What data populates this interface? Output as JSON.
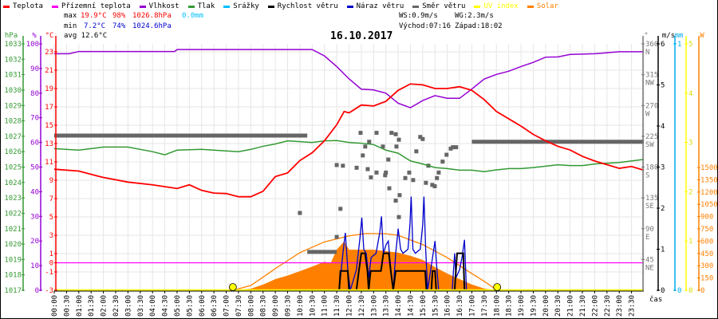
{
  "legend": [
    {
      "label": "Teplota",
      "color": "#ff0000"
    },
    {
      "label": "Přízemní teplota",
      "color": "#ff00ff"
    },
    {
      "label": "Vlhkost",
      "color": "#9400d3"
    },
    {
      "label": "Tlak",
      "color": "#339933"
    },
    {
      "label": "Srážky",
      "color": "#00bfff"
    },
    {
      "label": "Rychlost větru",
      "color": "#000000"
    },
    {
      "label": "Náraz větru",
      "color": "#0000cc"
    },
    {
      "label": "Směr větru",
      "color": "#666666"
    },
    {
      "label": "UV index",
      "color": "#ffff00"
    },
    {
      "label": "Solar",
      "color": "#ff8000"
    }
  ],
  "header": {
    "max_label": "max",
    "max_temp": "19.9°C",
    "max_hum": "98%",
    "max_press": "1026.8hPa",
    "rain": "0.0mm",
    "min_label": "min",
    "min_temp": "7.2°C",
    "min_hum": "74%",
    "min_press": "1024.6hPa",
    "avg": "avg 12.6°C",
    "ws": "WS:0.9m/s",
    "wg": "WG:2.3m/s",
    "sunrise": "Východ:07:16",
    "sunset": "Západ:18:02"
  },
  "chart_data": {
    "type": "line",
    "title": "16.10.2017",
    "xlabel": "čas",
    "x_range_hours": [
      0,
      24
    ],
    "x_ticks": [
      "00:00",
      "00:30",
      "01:00",
      "01:30",
      "02:00",
      "02:30",
      "03:00",
      "03:30",
      "04:00",
      "04:30",
      "05:00",
      "05:30",
      "06:00",
      "06:30",
      "07:00",
      "07:30",
      "08:00",
      "08:30",
      "09:00",
      "09:30",
      "10:00",
      "10:30",
      "11:00",
      "11:30",
      "12:00",
      "12:30",
      "13:00",
      "13:30",
      "14:00",
      "14:30",
      "15:00",
      "15:30",
      "16:00",
      "16:30",
      "17:00",
      "17:30",
      "18:00",
      "18:30",
      "19:00",
      "19:30",
      "20:00",
      "20:30",
      "21:00",
      "21:30",
      "22:00",
      "22:30",
      "23:00",
      "23:30"
    ],
    "grid": true,
    "axes": {
      "pressure": {
        "label": "hPa",
        "range": [
          1017,
          1033
        ],
        "ticks": [
          1017,
          1018,
          1019,
          1020,
          1021,
          1022,
          1023,
          1024,
          1025,
          1026,
          1027,
          1028,
          1029,
          1030,
          1031,
          1032,
          1033
        ],
        "color": "#339933"
      },
      "humidity": {
        "label": "%",
        "range": [
          0,
          100
        ],
        "ticks": [
          0,
          10,
          20,
          30,
          40,
          50,
          60,
          70,
          80,
          90,
          100
        ],
        "color": "#9400d3"
      },
      "temperature": {
        "label": "°C",
        "range": [
          -3,
          23.87
        ],
        "ticks": [
          -3,
          -1,
          0,
          1,
          3,
          5,
          7,
          9,
          11,
          13,
          15,
          17,
          19,
          21,
          23
        ],
        "color": "#ff0000"
      },
      "wind_dir": {
        "label": "°",
        "range": [
          0,
          360
        ],
        "ticks": [
          {
            "v": 45,
            "l": "45",
            "d": "NE"
          },
          {
            "v": 90,
            "l": "90",
            "d": "E"
          },
          {
            "v": 135,
            "l": "135",
            "d": "SE"
          },
          {
            "v": 180,
            "l": "180",
            "d": "S"
          },
          {
            "v": 225,
            "l": "225",
            "d": "SW"
          },
          {
            "v": 270,
            "l": "270",
            "d": "W"
          },
          {
            "v": 315,
            "l": "315",
            "d": "NW"
          },
          {
            "v": 360,
            "l": "360",
            "d": "N"
          }
        ],
        "color": "#777777"
      },
      "wind_speed": {
        "label": "m/s",
        "range": [
          0,
          6
        ],
        "ticks": [
          0,
          1,
          2,
          3,
          4,
          5,
          6
        ],
        "color": "#000000"
      },
      "rain": {
        "label": "mm",
        "range": [
          0,
          1
        ],
        "ticks": [
          0,
          1
        ],
        "color": "#00aaee"
      },
      "uv": {
        "label": "",
        "range": [
          0,
          5
        ],
        "ticks": [
          0,
          1,
          2,
          3,
          4,
          5
        ],
        "color": "#ffff00"
      },
      "solar": {
        "label": "W",
        "range": [
          0,
          3000
        ],
        "ticks": [
          0,
          150,
          300,
          450,
          600,
          750,
          900,
          1050,
          1200,
          1350,
          1500
        ],
        "color": "#ff8000"
      }
    },
    "series": {
      "temperature": [
        [
          0,
          10.2
        ],
        [
          1,
          10.0
        ],
        [
          2,
          9.3
        ],
        [
          3,
          8.8
        ],
        [
          4,
          8.5
        ],
        [
          5,
          8.1
        ],
        [
          5.5,
          8.5
        ],
        [
          6,
          7.9
        ],
        [
          6.5,
          7.6
        ],
        [
          7,
          7.55
        ],
        [
          7.5,
          7.2
        ],
        [
          8,
          7.2
        ],
        [
          8.5,
          7.8
        ],
        [
          9,
          9.4
        ],
        [
          9.5,
          9.8
        ],
        [
          10,
          11.15
        ],
        [
          10.5,
          12.0
        ],
        [
          11,
          13.3
        ],
        [
          11.5,
          15.05
        ],
        [
          11.8,
          16.5
        ],
        [
          12,
          16.35
        ],
        [
          12.5,
          17.2
        ],
        [
          13,
          17.1
        ],
        [
          13.5,
          17.6
        ],
        [
          14,
          18.8
        ],
        [
          14.5,
          19.5
        ],
        [
          15,
          19.4
        ],
        [
          15.5,
          19.0
        ],
        [
          16,
          19.0
        ],
        [
          16.5,
          19.2
        ],
        [
          17,
          18.8
        ],
        [
          17.5,
          17.8
        ],
        [
          18,
          16.5
        ],
        [
          18.5,
          15.7
        ],
        [
          19,
          14.9
        ],
        [
          19.5,
          14.0
        ],
        [
          20,
          13.3
        ],
        [
          20.5,
          12.7
        ],
        [
          21,
          12.3
        ],
        [
          21.5,
          11.6
        ],
        [
          22,
          11.1
        ],
        [
          22.5,
          10.7
        ],
        [
          23,
          10.3
        ],
        [
          23.5,
          10.5
        ],
        [
          24,
          10.1
        ]
      ],
      "apparent_temperature": [
        [
          0,
          0
        ],
        [
          24,
          0
        ]
      ],
      "humidity": [
        [
          0,
          96.0
        ],
        [
          0.6,
          96.0
        ],
        [
          1,
          96.9
        ],
        [
          4.9,
          96.9
        ],
        [
          5,
          97.7
        ],
        [
          10.5,
          97.7
        ],
        [
          11,
          95.1
        ],
        [
          11.5,
          90.8
        ],
        [
          12,
          85.8
        ],
        [
          12.5,
          81.6
        ],
        [
          13,
          81.3
        ],
        [
          13.5,
          80
        ],
        [
          14,
          75.9
        ],
        [
          14.5,
          74.1
        ],
        [
          15,
          77
        ],
        [
          15.5,
          79
        ],
        [
          16,
          77.9
        ],
        [
          16.5,
          77.9
        ],
        [
          17,
          81.7
        ],
        [
          17.5,
          85.7
        ],
        [
          18,
          87.6
        ],
        [
          18.5,
          88.9
        ],
        [
          19,
          90.8
        ],
        [
          19.5,
          92.5
        ],
        [
          20,
          94.6
        ],
        [
          20.5,
          94.7
        ],
        [
          21,
          95.7
        ],
        [
          22,
          96.0
        ],
        [
          23,
          96.8
        ],
        [
          24,
          96.8
        ]
      ],
      "pressure": [
        [
          0,
          1026.2
        ],
        [
          1,
          1026.1
        ],
        [
          2,
          1026.3
        ],
        [
          3,
          1026.3
        ],
        [
          4,
          1026.0
        ],
        [
          4.5,
          1025.8
        ],
        [
          5,
          1026.1
        ],
        [
          6,
          1026.15
        ],
        [
          7,
          1026.05
        ],
        [
          7.5,
          1026.0
        ],
        [
          8,
          1026.15
        ],
        [
          8.5,
          1026.35
        ],
        [
          9,
          1026.5
        ],
        [
          9.5,
          1026.7
        ],
        [
          10,
          1026.65
        ],
        [
          10.5,
          1026.6
        ],
        [
          11,
          1026.7
        ],
        [
          11.5,
          1026.72
        ],
        [
          12,
          1026.6
        ],
        [
          12.5,
          1026.55
        ],
        [
          13,
          1026.46
        ],
        [
          13.5,
          1026.1
        ],
        [
          14,
          1025.9
        ],
        [
          14.5,
          1025.4
        ],
        [
          15,
          1025.2
        ],
        [
          15.5,
          1024.97
        ],
        [
          16,
          1024.9
        ],
        [
          16.5,
          1024.8
        ],
        [
          17,
          1024.8
        ],
        [
          17.5,
          1024.7
        ],
        [
          18,
          1024.82
        ],
        [
          18.5,
          1024.9
        ],
        [
          19,
          1024.9
        ],
        [
          19.5,
          1024.97
        ],
        [
          20,
          1025.06
        ],
        [
          20.5,
          1025.15
        ],
        [
          21,
          1025.1
        ],
        [
          21.5,
          1025.1
        ],
        [
          22,
          1025.2
        ],
        [
          23,
          1025.3
        ],
        [
          24,
          1025.5
        ]
      ],
      "rain": [
        [
          0,
          0
        ],
        [
          24,
          0
        ]
      ],
      "uv": [
        [
          0,
          0
        ],
        [
          24,
          0
        ]
      ],
      "wind_speed": [
        [
          0,
          0
        ],
        [
          11.6,
          0
        ],
        [
          11.65,
          0.47
        ],
        [
          11.95,
          0.47
        ],
        [
          12.0,
          0
        ],
        [
          12.3,
          0
        ],
        [
          12.4,
          0.47
        ],
        [
          12.5,
          0.9
        ],
        [
          12.65,
          0.9
        ],
        [
          12.75,
          0.47
        ],
        [
          12.8,
          0
        ],
        [
          12.88,
          0.47
        ],
        [
          13.3,
          0.47
        ],
        [
          13.4,
          0.9
        ],
        [
          13.62,
          0.9
        ],
        [
          13.7,
          0.47
        ],
        [
          13.8,
          0
        ],
        [
          13.9,
          0.47
        ],
        [
          15.1,
          0.47
        ],
        [
          15.15,
          0
        ],
        [
          15.35,
          0
        ],
        [
          15.4,
          0.47
        ],
        [
          15.5,
          0.47
        ],
        [
          15.55,
          0
        ],
        [
          16.3,
          0
        ],
        [
          16.35,
          0.47
        ],
        [
          16.4,
          0.9
        ],
        [
          16.65,
          0.9
        ],
        [
          16.7,
          0
        ],
        [
          24,
          0
        ]
      ],
      "wind_gust": [
        [
          0,
          0
        ],
        [
          11.6,
          0
        ],
        [
          11.75,
          0.9
        ],
        [
          11.85,
          1.4
        ],
        [
          11.95,
          0.5
        ],
        [
          12.05,
          0
        ],
        [
          12.3,
          0.5
        ],
        [
          12.45,
          1.3
        ],
        [
          12.52,
          1.77
        ],
        [
          12.6,
          1.0
        ],
        [
          12.7,
          0.9
        ],
        [
          12.8,
          0.3
        ],
        [
          12.9,
          0.8
        ],
        [
          13.1,
          0.9
        ],
        [
          13.25,
          1.4
        ],
        [
          13.32,
          1.8
        ],
        [
          13.4,
          0.9
        ],
        [
          13.5,
          1.1
        ],
        [
          13.6,
          1.2
        ],
        [
          13.7,
          0.5
        ],
        [
          13.8,
          0
        ],
        [
          13.9,
          0.9
        ],
        [
          14.0,
          1.5
        ],
        [
          14.1,
          1.0
        ],
        [
          14.2,
          0.9
        ],
        [
          14.4,
          1.0
        ],
        [
          14.48,
          1.6
        ],
        [
          14.53,
          2.28
        ],
        [
          14.6,
          1.0
        ],
        [
          14.7,
          0.9
        ],
        [
          14.9,
          1.0
        ],
        [
          15.0,
          1.6
        ],
        [
          15.05,
          2.28
        ],
        [
          15.12,
          1.0
        ],
        [
          15.2,
          0
        ],
        [
          15.4,
          0.8
        ],
        [
          15.5,
          1.2
        ],
        [
          15.58,
          0.5
        ],
        [
          15.65,
          0
        ],
        [
          16.2,
          0
        ],
        [
          16.3,
          0.9
        ],
        [
          16.35,
          0.3
        ],
        [
          16.5,
          0.5
        ],
        [
          16.6,
          0.8
        ],
        [
          16.7,
          1.23
        ],
        [
          16.78,
          0
        ],
        [
          24,
          0
        ]
      ],
      "wind_dir_segments": [
        [
          0,
          10.3,
          226
        ],
        [
          10.3,
          11.5,
          56
        ],
        [
          17.0,
          24,
          217
        ]
      ],
      "wind_dir_points": [
        [
          10.0,
          113
        ],
        [
          11.5,
          183
        ],
        [
          11.65,
          119
        ],
        [
          11.5,
          78
        ],
        [
          11.75,
          182
        ],
        [
          12.31,
          179
        ],
        [
          12.47,
          230
        ],
        [
          12.56,
          197
        ],
        [
          12.66,
          210
        ],
        [
          12.76,
          177
        ],
        [
          12.82,
          217
        ],
        [
          12.89,
          165
        ],
        [
          13.12,
          230
        ],
        [
          13.12,
          172
        ],
        [
          13.38,
          210
        ],
        [
          13.47,
          168
        ],
        [
          13.5,
          172
        ],
        [
          13.6,
          191
        ],
        [
          13.64,
          149
        ],
        [
          13.73,
          230
        ],
        [
          13.9,
          228
        ],
        [
          13.93,
          210
        ],
        [
          14.03,
          220
        ],
        [
          13.9,
          131
        ],
        [
          14.03,
          107
        ],
        [
          14.06,
          139
        ],
        [
          14.29,
          164
        ],
        [
          14.45,
          172
        ],
        [
          14.61,
          161
        ],
        [
          14.74,
          203
        ],
        [
          14.9,
          224
        ],
        [
          15.0,
          221
        ],
        [
          15.13,
          157
        ],
        [
          15.23,
          182
        ],
        [
          15.39,
          154
        ],
        [
          15.49,
          152
        ],
        [
          15.58,
          164
        ],
        [
          15.65,
          172
        ],
        [
          15.81,
          188
        ],
        [
          15.97,
          198
        ],
        [
          16.14,
          207
        ],
        [
          16.23,
          209
        ],
        [
          16.36,
          209
        ]
      ],
      "solar": [
        [
          7.3,
          0
        ],
        [
          8,
          20
        ],
        [
          8.5,
          70
        ],
        [
          9,
          136
        ],
        [
          9.5,
          180
        ],
        [
          10,
          234
        ],
        [
          10.5,
          290
        ],
        [
          11,
          350
        ],
        [
          11.25,
          330
        ],
        [
          11.5,
          497
        ],
        [
          11.8,
          597
        ],
        [
          12,
          496
        ],
        [
          13,
          496
        ],
        [
          14,
          460
        ],
        [
          14.5,
          421
        ],
        [
          15,
          371
        ],
        [
          15.5,
          282
        ],
        [
          16,
          204
        ],
        [
          16.5,
          136
        ],
        [
          17,
          71
        ],
        [
          17.5,
          22
        ],
        [
          18,
          0
        ]
      ],
      "solar_theoretical": [
        [
          7.27,
          0
        ],
        [
          8,
          58
        ],
        [
          8.5,
          160
        ],
        [
          9,
          265
        ],
        [
          9.5,
          363
        ],
        [
          10,
          460
        ],
        [
          11,
          591
        ],
        [
          12,
          665
        ],
        [
          12.7,
          694
        ],
        [
          13.5,
          690
        ],
        [
          14,
          672
        ],
        [
          15,
          558
        ],
        [
          16,
          399
        ],
        [
          17,
          204
        ],
        [
          17.5,
          110
        ],
        [
          18.03,
          0
        ]
      ]
    },
    "sun_markers": [
      7.27,
      18.03
    ]
  }
}
